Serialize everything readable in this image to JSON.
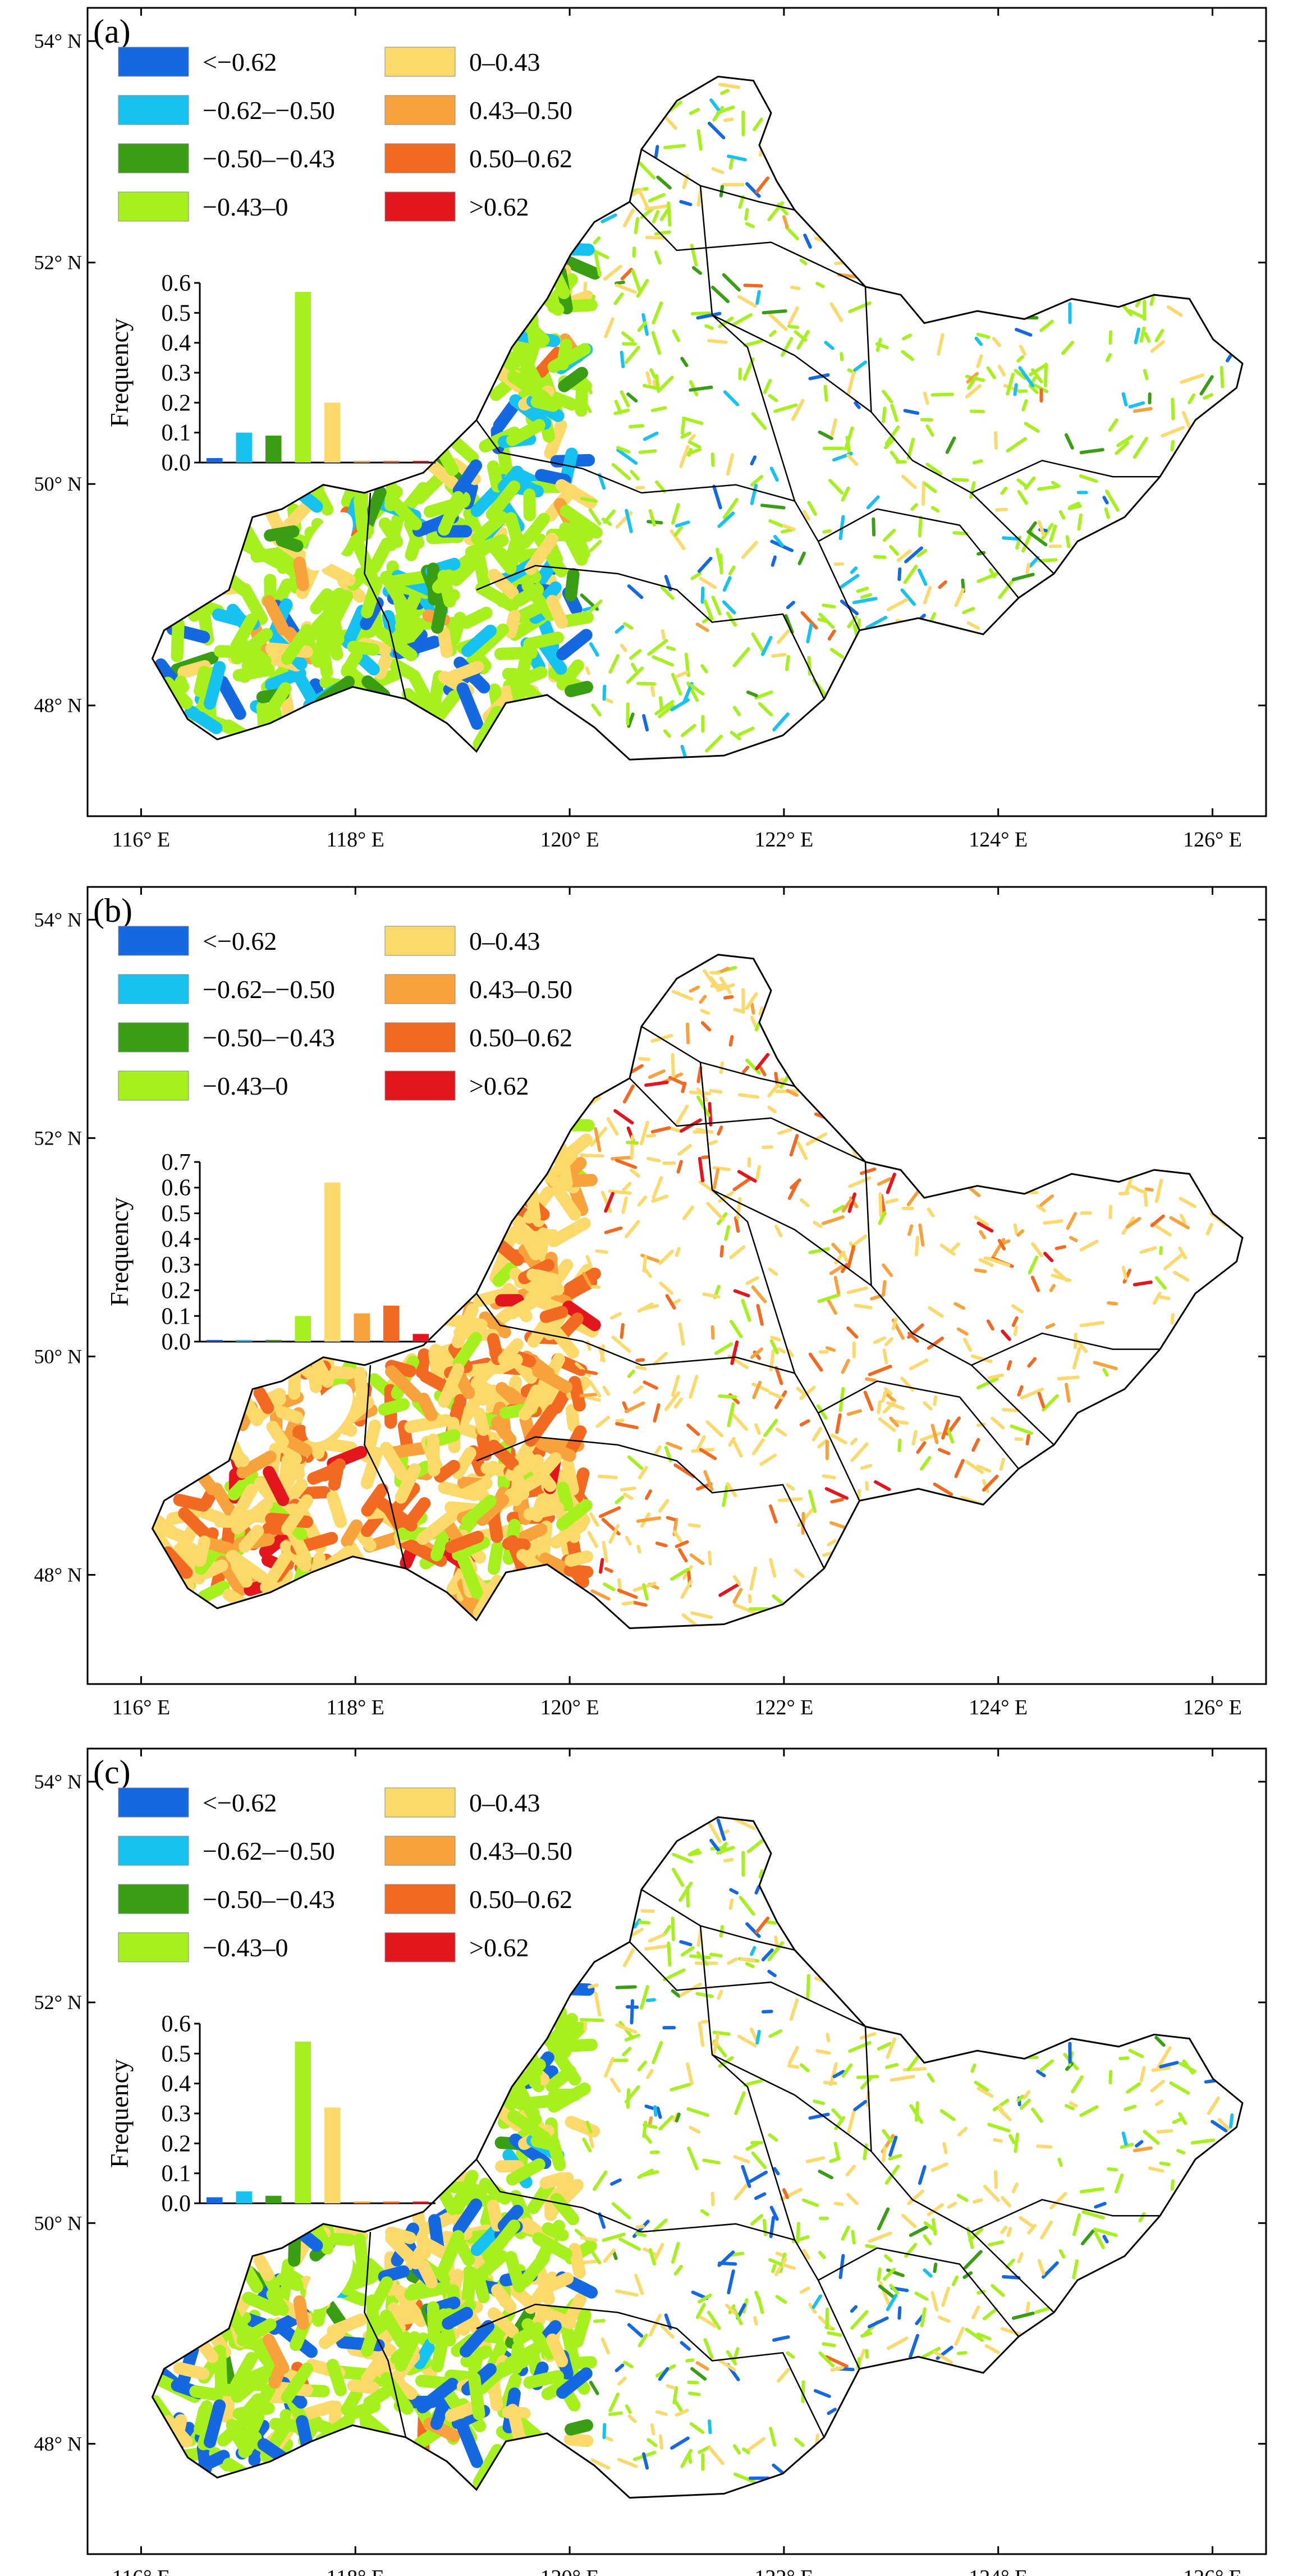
{
  "figure": {
    "panels": [
      {
        "id": "a",
        "label": "(a)",
        "frequencies": [
          0.015,
          0.1,
          0.09,
          0.57,
          0.2,
          0.004,
          0.004,
          0.004
        ],
        "freq_axis": {
          "ticks": [
            "0.0",
            "0.1",
            "0.2",
            "0.3",
            "0.4",
            "0.5",
            "0.6"
          ],
          "ylim": [
            0,
            0.6
          ]
        },
        "palette_weights": [
          0.06,
          0.12,
          0.08,
          0.56,
          0.16,
          0.01,
          0.01,
          0.0
        ]
      },
      {
        "id": "b",
        "label": "(b)",
        "frequencies": [
          0.003,
          0.003,
          0.003,
          0.1,
          0.62,
          0.11,
          0.14,
          0.03
        ],
        "freq_axis": {
          "ticks": [
            "0.0",
            "0.1",
            "0.2",
            "0.3",
            "0.4",
            "0.5",
            "0.6",
            "0.7"
          ],
          "ylim": [
            0,
            0.7
          ]
        },
        "palette_weights": [
          0.0,
          0.0,
          0.0,
          0.1,
          0.52,
          0.16,
          0.18,
          0.04
        ]
      },
      {
        "id": "c",
        "label": "(c)",
        "frequencies": [
          0.02,
          0.04,
          0.025,
          0.54,
          0.32,
          0.005,
          0.002,
          0.002
        ],
        "freq_axis": {
          "ticks": [
            "0.0",
            "0.1",
            "0.2",
            "0.3",
            "0.4",
            "0.5",
            "0.6"
          ],
          "ylim": [
            0,
            0.6
          ]
        },
        "palette_weights": [
          0.14,
          0.03,
          0.04,
          0.5,
          0.27,
          0.01,
          0.01,
          0.0
        ]
      }
    ],
    "legend": {
      "classes": [
        {
          "label": "<−0.62",
          "color": "#1469e0"
        },
        {
          "label": "−0.62–−0.50",
          "color": "#16c2f0"
        },
        {
          "label": "−0.50–−0.43",
          "color": "#3a9e14"
        },
        {
          "label": "−0.43–0",
          "color": "#a6f01e"
        },
        {
          "label": "0–0.43",
          "color": "#fbd96a"
        },
        {
          "label": "0.43–0.50",
          "color": "#f8a23d"
        },
        {
          "label": "0.50–0.62",
          "color": "#f26a22"
        },
        {
          "label": ">0.62",
          "color": "#e3161e"
        }
      ]
    },
    "axes": {
      "lon_ticks": [
        "116° E",
        "118° E",
        "120° E",
        "122° E",
        "124° E",
        "126° E"
      ],
      "lat_ticks": [
        "54° N",
        "52° N",
        "50° N",
        "48° N"
      ],
      "lon_range": [
        115.5,
        126.5
      ],
      "lat_range": [
        47.0,
        54.3
      ]
    },
    "hist_ylabel": "Frequency"
  }
}
